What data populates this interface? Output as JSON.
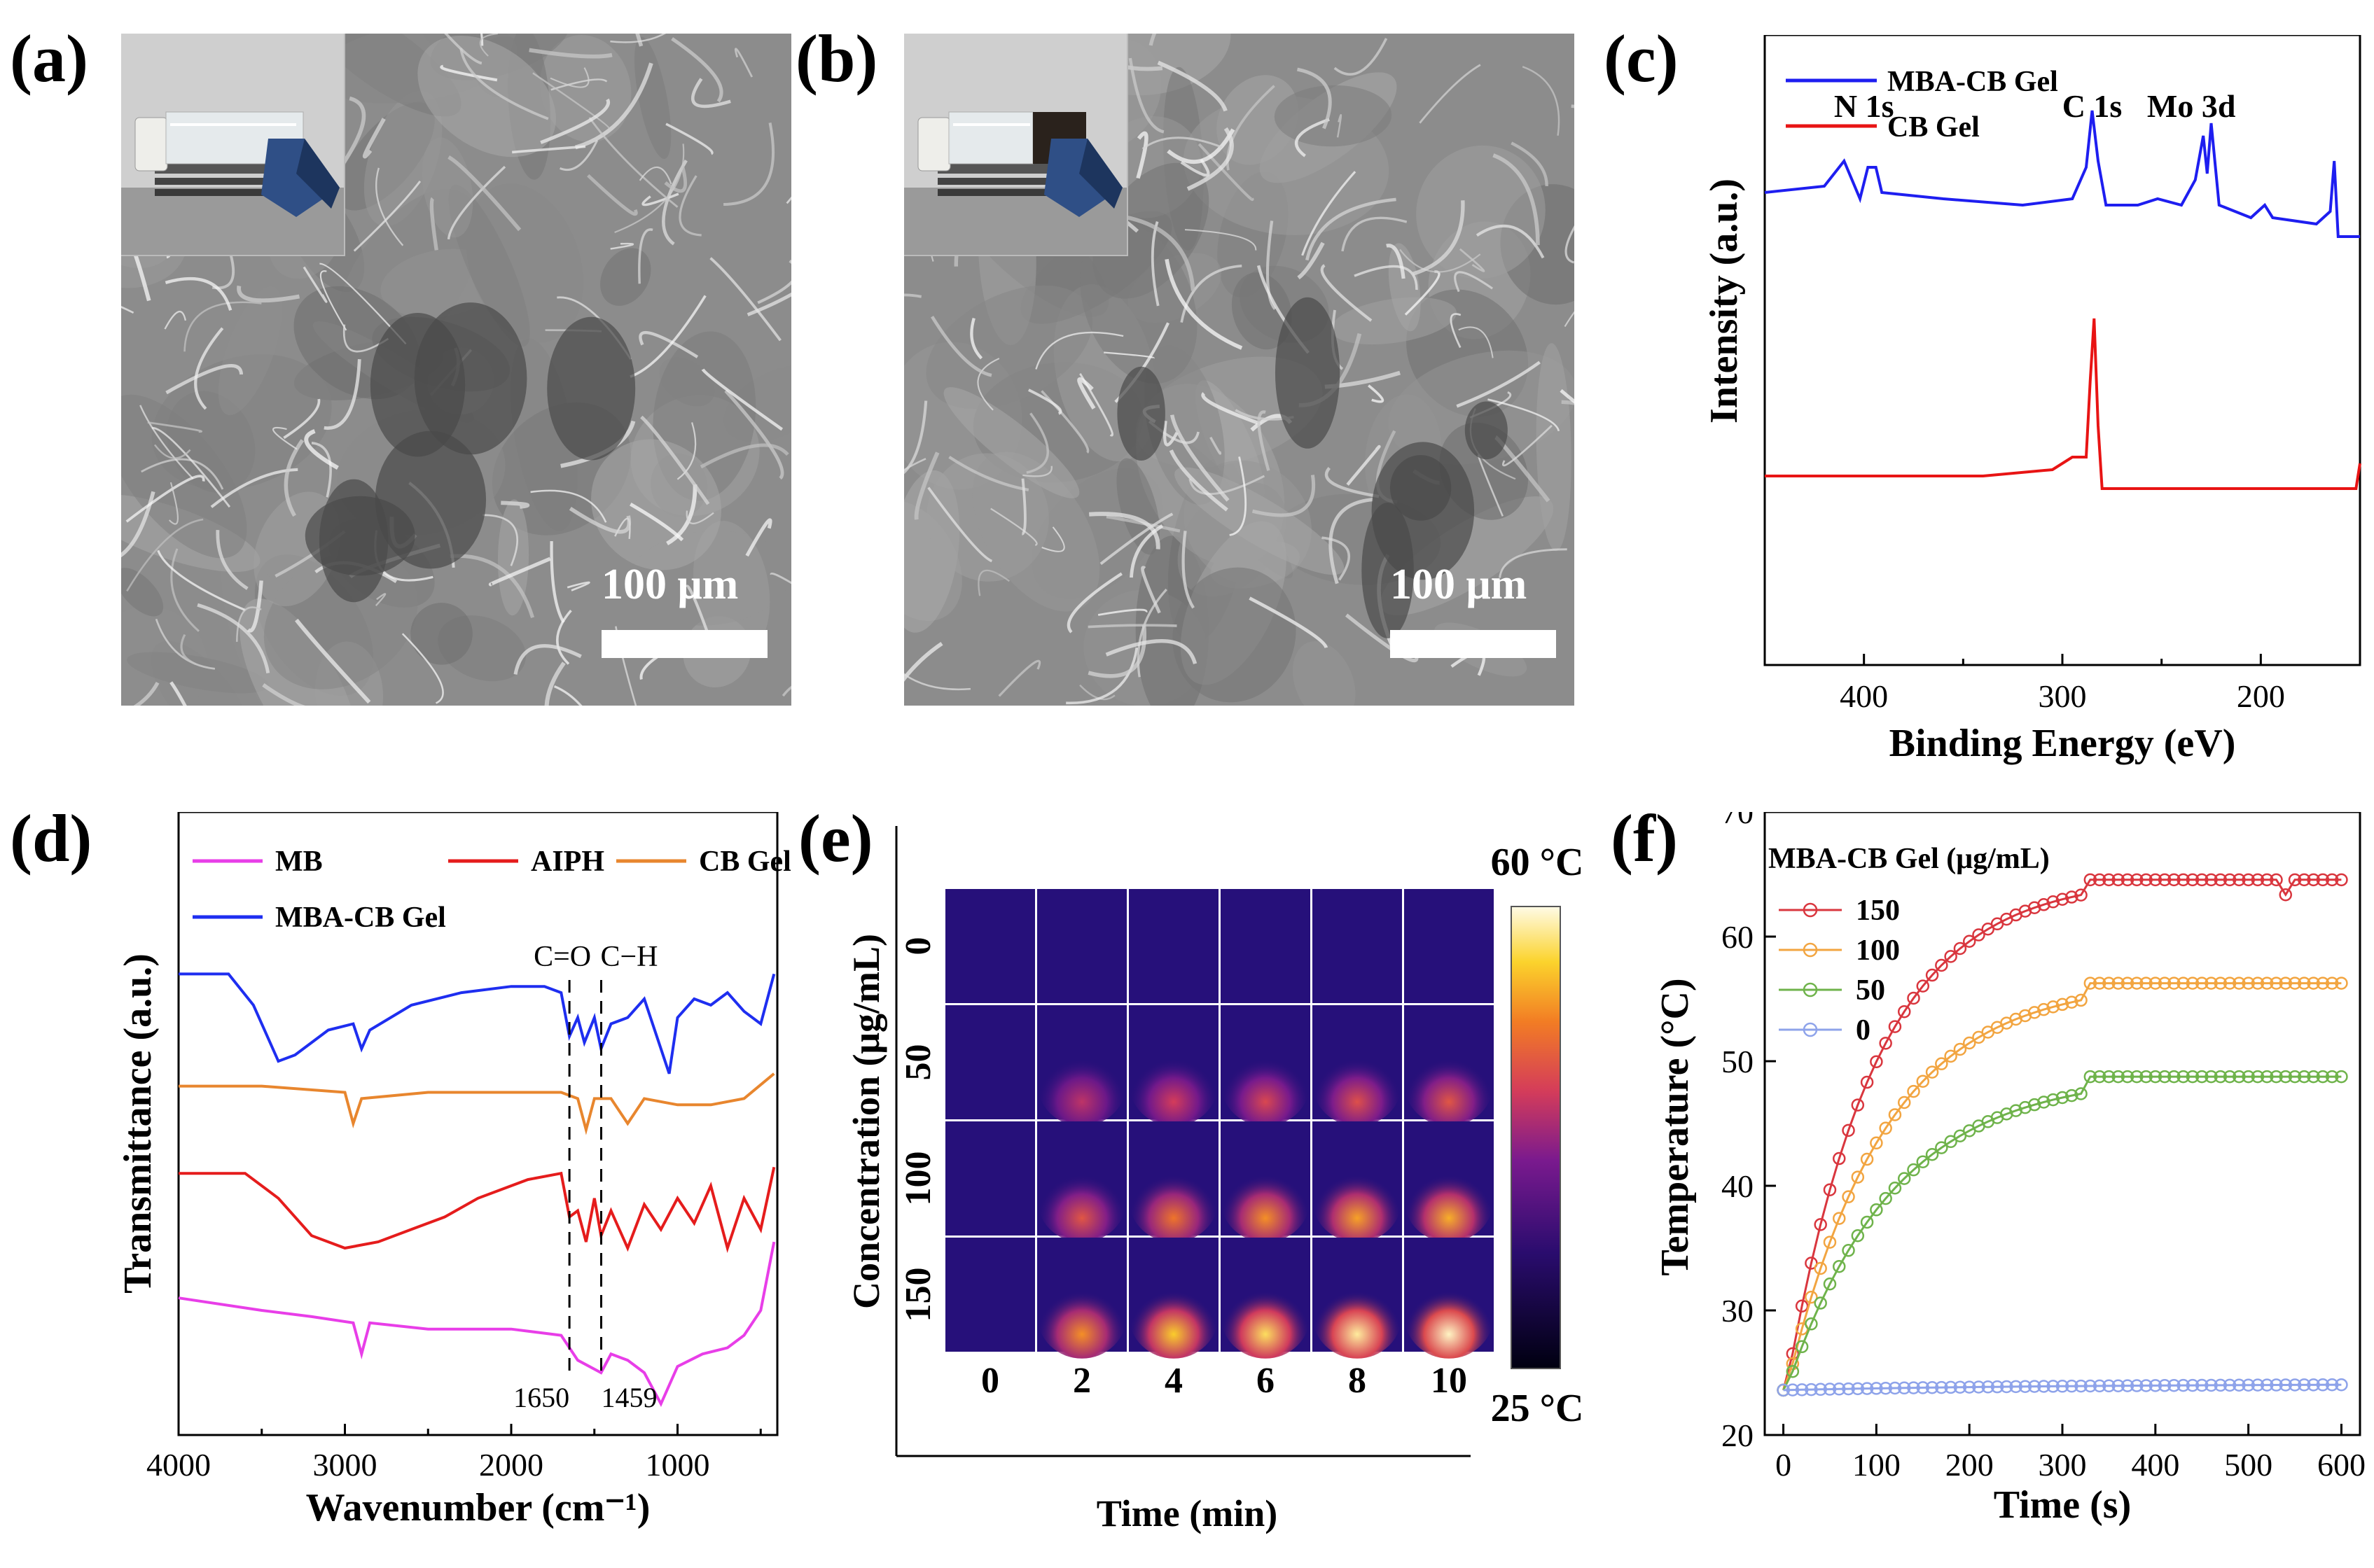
{
  "panels": {
    "a": {
      "letter": "(a)",
      "scale_label": "100 μm"
    },
    "b": {
      "letter": "(b)",
      "scale_label": "100 μm"
    },
    "c": {
      "letter": "(c)"
    },
    "d": {
      "letter": "(d)"
    },
    "e": {
      "letter": "(e)"
    },
    "f": {
      "letter": "(f)"
    }
  },
  "chart_data": [
    {
      "panel": "c",
      "type": "line",
      "xlabel": "Binding Energy (eV)",
      "ylabel": "Intensity (a.u.)",
      "xlim": [
        450,
        150
      ],
      "x_ticks": [
        400,
        300,
        200
      ],
      "legend": "top-left",
      "series": [
        {
          "name": "MBA-CB Gel",
          "color": "#1e1ef0",
          "points": [
            [
              450,
              0.75
            ],
            [
              420,
              0.76
            ],
            [
              410,
              0.8
            ],
            [
              402,
              0.74
            ],
            [
              398,
              0.79
            ],
            [
              394,
              0.79
            ],
            [
              391,
              0.75
            ],
            [
              360,
              0.74
            ],
            [
              320,
              0.73
            ],
            [
              295,
              0.74
            ],
            [
              288,
              0.79
            ],
            [
              285,
              0.88
            ],
            [
              282,
              0.8
            ],
            [
              278,
              0.73
            ],
            [
              262,
              0.73
            ],
            [
              252,
              0.74
            ],
            [
              240,
              0.73
            ],
            [
              233,
              0.77
            ],
            [
              229,
              0.84
            ],
            [
              227,
              0.78
            ],
            [
              225,
              0.86
            ],
            [
              221,
              0.73
            ],
            [
              205,
              0.71
            ],
            [
              198,
              0.73
            ],
            [
              194,
              0.71
            ],
            [
              172,
              0.7
            ],
            [
              165,
              0.72
            ],
            [
              163,
              0.8
            ],
            [
              161,
              0.68
            ],
            [
              150,
              0.68
            ]
          ]
        },
        {
          "name": "CB Gel",
          "color": "#e81414",
          "points": [
            [
              450,
              0.3
            ],
            [
              400,
              0.3
            ],
            [
              340,
              0.3
            ],
            [
              305,
              0.31
            ],
            [
              295,
              0.33
            ],
            [
              288,
              0.33
            ],
            [
              286,
              0.45
            ],
            [
              284,
              0.55
            ],
            [
              282,
              0.38
            ],
            [
              280,
              0.28
            ],
            [
              270,
              0.28
            ],
            [
              200,
              0.28
            ],
            [
              152,
              0.28
            ],
            [
              150,
              0.32
            ]
          ]
        }
      ],
      "annotations": [
        {
          "text": "N 1s",
          "x": 400
        },
        {
          "text": "C 1s",
          "x": 285
        },
        {
          "text": "Mo 3d",
          "x": 235
        }
      ]
    },
    {
      "panel": "d",
      "type": "line",
      "xlabel": "Wavenumber (cm⁻¹)",
      "ylabel": "Transmittance (a.u.)",
      "xlim": [
        4000,
        400
      ],
      "x_ticks": [
        4000,
        3000,
        2000,
        1000
      ],
      "legend": "top",
      "series": [
        {
          "name": "MB",
          "color": "#e83ee8",
          "points": [
            [
              4000,
              0.22
            ],
            [
              3500,
              0.2
            ],
            [
              3200,
              0.19
            ],
            [
              2950,
              0.18
            ],
            [
              2900,
              0.13
            ],
            [
              2850,
              0.18
            ],
            [
              2500,
              0.17
            ],
            [
              2000,
              0.17
            ],
            [
              1700,
              0.16
            ],
            [
              1600,
              0.12
            ],
            [
              1460,
              0.1
            ],
            [
              1400,
              0.13
            ],
            [
              1300,
              0.12
            ],
            [
              1200,
              0.1
            ],
            [
              1100,
              0.05
            ],
            [
              1000,
              0.11
            ],
            [
              850,
              0.13
            ],
            [
              700,
              0.14
            ],
            [
              600,
              0.16
            ],
            [
              500,
              0.2
            ],
            [
              420,
              0.31
            ]
          ]
        },
        {
          "name": "AIPH",
          "color": "#e51c1c",
          "points": [
            [
              4000,
              0.42
            ],
            [
              3600,
              0.42
            ],
            [
              3400,
              0.38
            ],
            [
              3200,
              0.32
            ],
            [
              3000,
              0.3
            ],
            [
              2800,
              0.31
            ],
            [
              2600,
              0.33
            ],
            [
              2400,
              0.35
            ],
            [
              2200,
              0.38
            ],
            [
              1900,
              0.41
            ],
            [
              1700,
              0.42
            ],
            [
              1650,
              0.35
            ],
            [
              1600,
              0.36
            ],
            [
              1550,
              0.31
            ],
            [
              1500,
              0.38
            ],
            [
              1460,
              0.32
            ],
            [
              1400,
              0.36
            ],
            [
              1300,
              0.3
            ],
            [
              1200,
              0.37
            ],
            [
              1100,
              0.33
            ],
            [
              1000,
              0.38
            ],
            [
              900,
              0.34
            ],
            [
              800,
              0.4
            ],
            [
              700,
              0.3
            ],
            [
              600,
              0.38
            ],
            [
              500,
              0.33
            ],
            [
              420,
              0.43
            ]
          ]
        },
        {
          "name": "CB Gel",
          "color": "#e8862e",
          "points": [
            [
              4000,
              0.56
            ],
            [
              3500,
              0.56
            ],
            [
              3000,
              0.55
            ],
            [
              2950,
              0.5
            ],
            [
              2900,
              0.54
            ],
            [
              2500,
              0.55
            ],
            [
              2000,
              0.55
            ],
            [
              1700,
              0.55
            ],
            [
              1600,
              0.54
            ],
            [
              1550,
              0.49
            ],
            [
              1500,
              0.54
            ],
            [
              1400,
              0.54
            ],
            [
              1300,
              0.5
            ],
            [
              1200,
              0.54
            ],
            [
              1000,
              0.53
            ],
            [
              800,
              0.53
            ],
            [
              600,
              0.54
            ],
            [
              420,
              0.58
            ]
          ]
        },
        {
          "name": "MBA-CB Gel",
          "color": "#1e2ef0",
          "points": [
            [
              4000,
              0.74
            ],
            [
              3700,
              0.74
            ],
            [
              3550,
              0.69
            ],
            [
              3400,
              0.6
            ],
            [
              3300,
              0.61
            ],
            [
              3100,
              0.65
            ],
            [
              2950,
              0.66
            ],
            [
              2900,
              0.62
            ],
            [
              2850,
              0.65
            ],
            [
              2600,
              0.69
            ],
            [
              2300,
              0.71
            ],
            [
              2000,
              0.72
            ],
            [
              1800,
              0.72
            ],
            [
              1700,
              0.71
            ],
            [
              1650,
              0.64
            ],
            [
              1600,
              0.67
            ],
            [
              1560,
              0.63
            ],
            [
              1500,
              0.67
            ],
            [
              1460,
              0.62
            ],
            [
              1400,
              0.66
            ],
            [
              1300,
              0.67
            ],
            [
              1200,
              0.7
            ],
            [
              1100,
              0.62
            ],
            [
              1050,
              0.58
            ],
            [
              1000,
              0.67
            ],
            [
              900,
              0.7
            ],
            [
              800,
              0.69
            ],
            [
              700,
              0.71
            ],
            [
              600,
              0.68
            ],
            [
              500,
              0.66
            ],
            [
              420,
              0.74
            ]
          ]
        }
      ],
      "annotations": [
        {
          "text": "C=O",
          "x": 1650
        },
        {
          "text": "C−H",
          "x": 1459
        },
        {
          "text": "1650",
          "x": 1650
        },
        {
          "text": "1459",
          "x": 1459
        }
      ]
    },
    {
      "panel": "e",
      "type": "heatmap",
      "xlabel": "Time (min)",
      "ylabel": "Concentration (μg/mL)",
      "x_ticks": [
        "0",
        "2",
        "4",
        "6",
        "8",
        "10"
      ],
      "y_ticks": [
        "0",
        "50",
        "100",
        "150"
      ],
      "colorbar": {
        "max_label": "60 °C",
        "min_label": "25 °C"
      },
      "intensity": [
        [
          0.0,
          0.0,
          0.0,
          0.0,
          0.0,
          0.0
        ],
        [
          0.0,
          0.5,
          0.55,
          0.58,
          0.6,
          0.62
        ],
        [
          0.0,
          0.62,
          0.7,
          0.75,
          0.78,
          0.8
        ],
        [
          0.0,
          0.75,
          0.85,
          0.9,
          0.95,
          0.98
        ]
      ]
    },
    {
      "panel": "f",
      "type": "line",
      "title": "MBA-CB Gel (μg/mL)",
      "xlabel": "Time (s)",
      "ylabel": "Temperature (°C)",
      "xlim": [
        -20,
        620
      ],
      "ylim": [
        20,
        70
      ],
      "x_ticks": [
        0,
        100,
        200,
        300,
        400,
        500,
        600
      ],
      "y_ticks": [
        20,
        30,
        40,
        50,
        60,
        70
      ],
      "legend": "top-left",
      "series": [
        {
          "name": "150",
          "color": "#d9363e",
          "plateau": 64.8,
          "tau": 95,
          "dip": 540
        },
        {
          "name": "100",
          "color": "#f2a541",
          "plateau": 56.5,
          "tau": 105
        },
        {
          "name": "50",
          "color": "#6fb34b",
          "plateau": 49.0,
          "tau": 115
        },
        {
          "name": "0",
          "color": "#8ea3ea",
          "plateau": 24.1,
          "tau": 300
        }
      ],
      "start_temp": 23.6
    }
  ]
}
